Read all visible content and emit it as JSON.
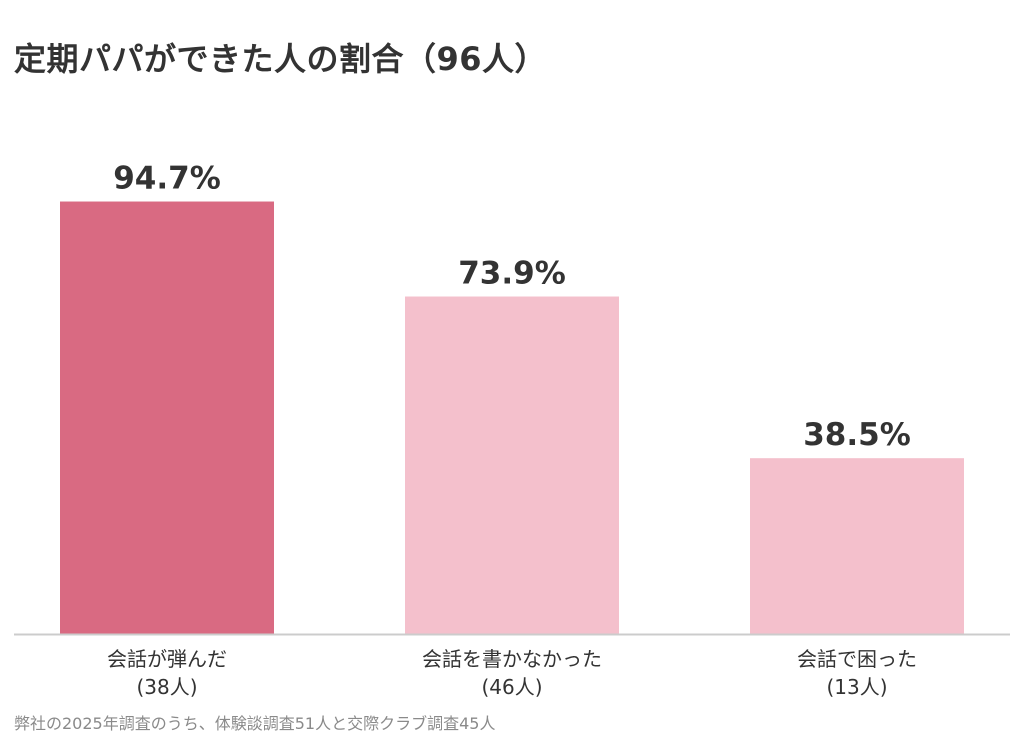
{
  "title": "定期パパができた人の割合（96人）",
  "footnote": "弊社の2025年調査のうち、体験談調査51人と交際クラブ調査45人",
  "chart_data": {
    "type": "bar",
    "categories": [
      "会話が弾んだ",
      "会話を書かなかった",
      "会話で困った"
    ],
    "counts": [
      "(38人)",
      "(46人)",
      "(13人)"
    ],
    "values": [
      94.7,
      73.9,
      38.5
    ],
    "value_labels": [
      "94.7%",
      "73.9%",
      "38.5%"
    ],
    "ylim": [
      0,
      100
    ],
    "grid": false,
    "colors": [
      "#d96a82",
      "#f4c0cc",
      "#f4c0cc"
    ],
    "title": "定期パパができた人の割合（96人）",
    "xlabel": "",
    "ylabel": ""
  }
}
